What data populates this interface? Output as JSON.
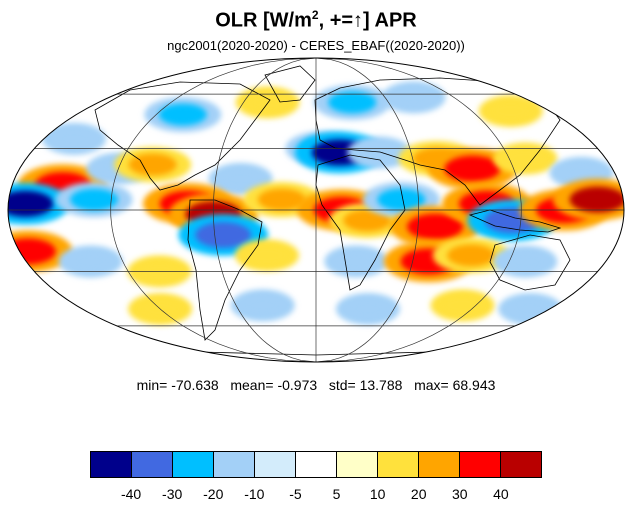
{
  "title": {
    "prefix": "OLR [W/m",
    "superscript": "2",
    "suffix": ", +=↑] APR"
  },
  "subtitle": "ngc2001(2020-2020) - CERES_EBAF((2020-2020))",
  "stats": {
    "min_label": "min=",
    "min": "-70.638",
    "mean_label": "mean=",
    "mean": "-0.973",
    "std_label": "std=",
    "std": "13.788",
    "max_label": "max=",
    "max": "68.943"
  },
  "colorbar": {
    "colors": [
      "#00008b",
      "#4169e1",
      "#00bfff",
      "#a3d0f7",
      "#d3ecfb",
      "#ffffff",
      "#ffffc8",
      "#ffe13c",
      "#ffa500",
      "#ff0000",
      "#b90000"
    ],
    "labels": [
      "-40",
      "-30",
      "-20",
      "-10",
      "-5",
      "5",
      "10",
      "20",
      "30",
      "40"
    ]
  },
  "map": {
    "projection": "mollweide",
    "grid": true,
    "land_outline_color": "#000000",
    "anomaly_patches": [
      {
        "lon": -160,
        "lat": 35,
        "level": -10
      },
      {
        "lon": -100,
        "lat": 48,
        "level": -20
      },
      {
        "lon": -40,
        "lat": 55,
        "level": 10
      },
      {
        "lon": 30,
        "lat": 55,
        "level": -20
      },
      {
        "lon": 85,
        "lat": 58,
        "level": -10
      },
      {
        "lon": 150,
        "lat": 50,
        "level": 10
      },
      {
        "lon": -150,
        "lat": 12,
        "level": 30
      },
      {
        "lon": -120,
        "lat": 20,
        "level": -10
      },
      {
        "lon": -100,
        "lat": 22,
        "level": 20
      },
      {
        "lon": -45,
        "lat": 15,
        "level": -10
      },
      {
        "lon": 5,
        "lat": 30,
        "level": -20
      },
      {
        "lon": 15,
        "lat": 28,
        "level": -40
      },
      {
        "lon": 40,
        "lat": 28,
        "level": -10
      },
      {
        "lon": 75,
        "lat": 25,
        "level": 20
      },
      {
        "lon": 95,
        "lat": 20,
        "level": 30
      },
      {
        "lon": 130,
        "lat": 25,
        "level": 10
      },
      {
        "lon": 160,
        "lat": 18,
        "level": -10
      },
      {
        "lon": -170,
        "lat": 3,
        "level": -40
      },
      {
        "lon": -130,
        "lat": 5,
        "level": -20
      },
      {
        "lon": -75,
        "lat": 3,
        "level": 30
      },
      {
        "lon": -60,
        "lat": -2,
        "level": 40
      },
      {
        "lon": -55,
        "lat": -12,
        "level": -30
      },
      {
        "lon": -20,
        "lat": 5,
        "level": 20
      },
      {
        "lon": 15,
        "lat": 0,
        "level": 30
      },
      {
        "lon": 30,
        "lat": -5,
        "level": 20
      },
      {
        "lon": 50,
        "lat": 5,
        "level": -20
      },
      {
        "lon": 70,
        "lat": -8,
        "level": 30
      },
      {
        "lon": 100,
        "lat": 3,
        "level": 30
      },
      {
        "lon": 115,
        "lat": -5,
        "level": -30
      },
      {
        "lon": 145,
        "lat": 0,
        "level": 30
      },
      {
        "lon": 165,
        "lat": 5,
        "level": 40
      },
      {
        "lon": -175,
        "lat": -20,
        "level": 30
      },
      {
        "lon": -140,
        "lat": -25,
        "level": -10
      },
      {
        "lon": -100,
        "lat": -30,
        "level": 10
      },
      {
        "lon": -30,
        "lat": -22,
        "level": 10
      },
      {
        "lon": 25,
        "lat": -25,
        "level": -10
      },
      {
        "lon": 70,
        "lat": -25,
        "level": 30
      },
      {
        "lon": 95,
        "lat": -22,
        "level": 20
      },
      {
        "lon": 130,
        "lat": -25,
        "level": -10
      },
      {
        "lon": -120,
        "lat": -50,
        "level": 10
      },
      {
        "lon": -40,
        "lat": -48,
        "level": -10
      },
      {
        "lon": 40,
        "lat": -50,
        "level": -10
      },
      {
        "lon": 110,
        "lat": -48,
        "level": 10
      },
      {
        "lon": 165,
        "lat": -50,
        "level": -10
      }
    ]
  }
}
